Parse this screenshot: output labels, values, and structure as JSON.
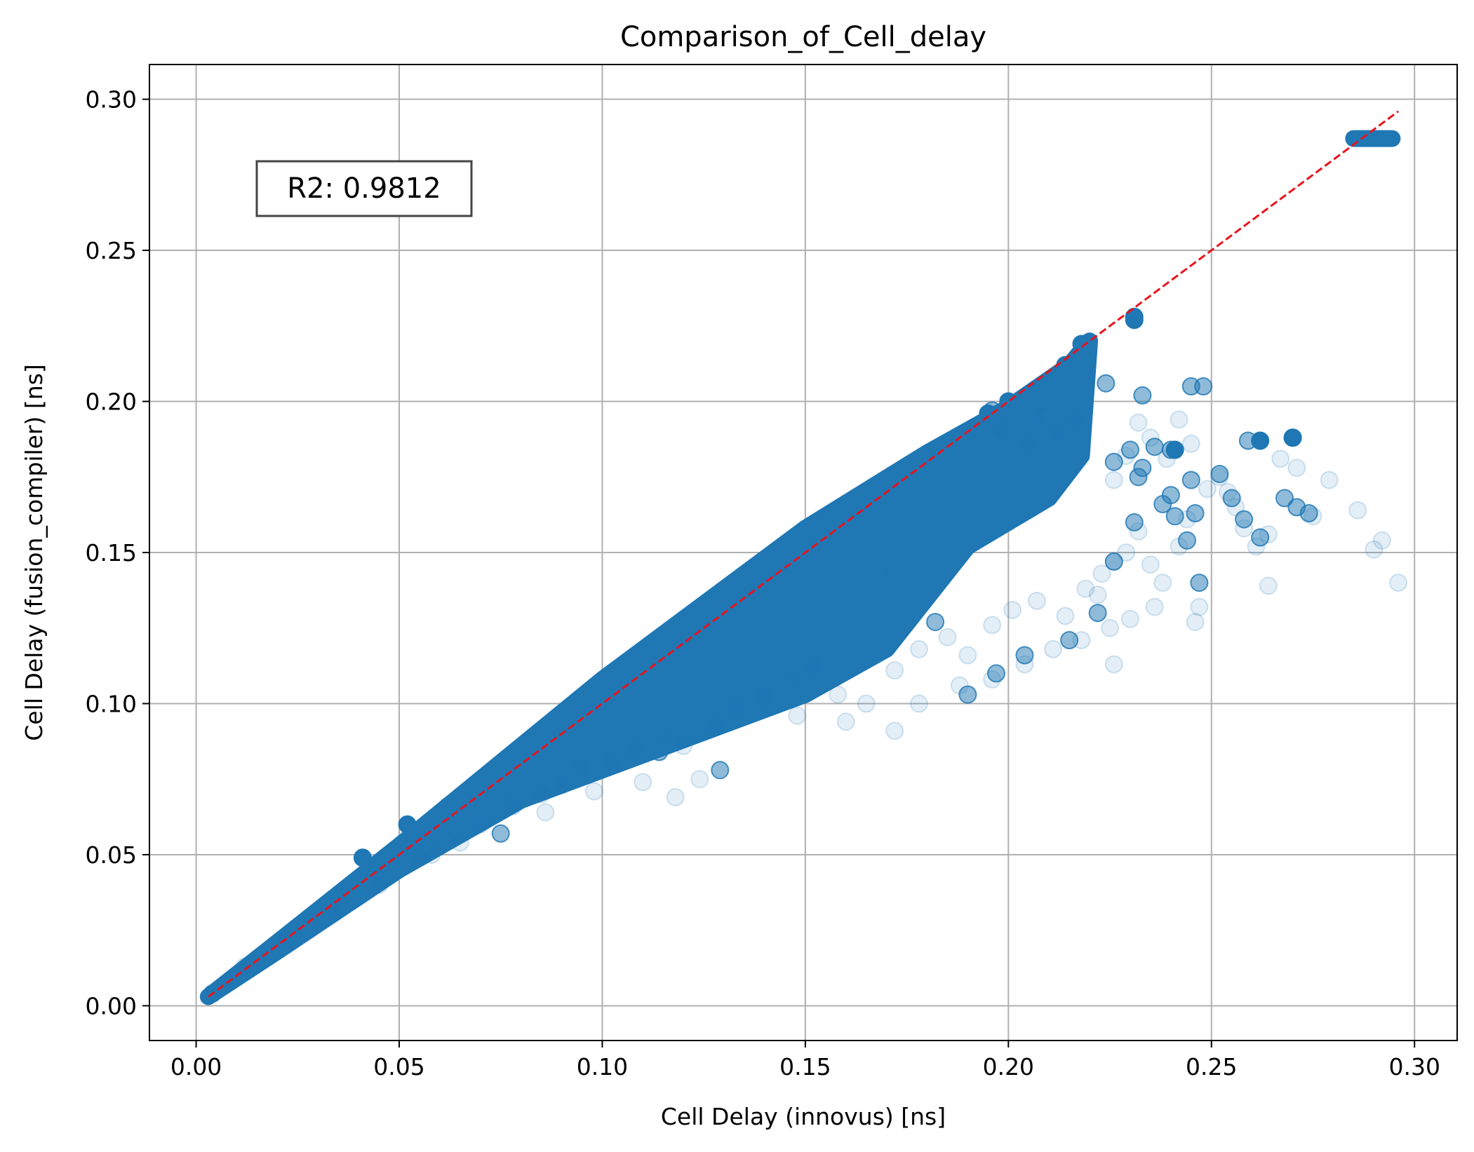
{
  "chart_data": {
    "type": "scatter",
    "title": "Comparison_of_Cell_delay",
    "xlabel": "Cell Delay (innovus) [ns]",
    "ylabel": "Cell Delay (fusion_compiler) [ns]",
    "xlim": [
      -0.0115,
      0.3105
    ],
    "ylim": [
      -0.0115,
      0.3115
    ],
    "xticks": [
      0.0,
      0.05,
      0.1,
      0.15,
      0.2,
      0.25,
      0.3
    ],
    "yticks": [
      0.0,
      0.05,
      0.1,
      0.15,
      0.2,
      0.25,
      0.3
    ],
    "xtick_labels": [
      "0.00",
      "0.05",
      "0.10",
      "0.15",
      "0.20",
      "0.25",
      "0.30"
    ],
    "ytick_labels": [
      "0.00",
      "0.05",
      "0.10",
      "0.15",
      "0.20",
      "0.25",
      "0.30"
    ],
    "grid": true,
    "colors": {
      "points": "#1f77b4",
      "reference_line": "#e8141c",
      "grid": "#b0b0b0"
    },
    "annotation": {
      "text": "R2: 0.9812",
      "position": "upper-left"
    },
    "reference_line": {
      "style": "dashed",
      "from": [
        0.003,
        0.003
      ],
      "to": [
        0.296,
        0.296
      ]
    },
    "series": [
      {
        "opacity": 0.12,
        "points": [
          [
            0.012,
            0.013
          ],
          [
            0.022,
            0.021
          ],
          [
            0.034,
            0.031
          ],
          [
            0.045,
            0.04
          ],
          [
            0.055,
            0.049
          ],
          [
            0.062,
            0.055
          ],
          [
            0.07,
            0.06
          ],
          [
            0.078,
            0.066
          ],
          [
            0.085,
            0.07
          ],
          [
            0.09,
            0.073
          ],
          [
            0.095,
            0.079
          ],
          [
            0.102,
            0.081
          ],
          [
            0.108,
            0.085
          ],
          [
            0.115,
            0.089
          ],
          [
            0.12,
            0.086
          ],
          [
            0.128,
            0.093
          ],
          [
            0.133,
            0.098
          ],
          [
            0.14,
            0.102
          ],
          [
            0.147,
            0.108
          ],
          [
            0.152,
            0.112
          ],
          [
            0.158,
            0.103
          ],
          [
            0.165,
            0.1
          ],
          [
            0.172,
            0.111
          ],
          [
            0.178,
            0.118
          ],
          [
            0.185,
            0.122
          ],
          [
            0.19,
            0.116
          ],
          [
            0.196,
            0.126
          ],
          [
            0.201,
            0.131
          ],
          [
            0.207,
            0.134
          ],
          [
            0.214,
            0.129
          ],
          [
            0.219,
            0.138
          ],
          [
            0.223,
            0.143
          ],
          [
            0.226,
            0.147
          ],
          [
            0.229,
            0.15
          ],
          [
            0.232,
            0.157
          ],
          [
            0.235,
            0.146
          ],
          [
            0.238,
            0.14
          ],
          [
            0.242,
            0.152
          ],
          [
            0.244,
            0.161
          ],
          [
            0.246,
            0.127
          ],
          [
            0.247,
            0.132
          ],
          [
            0.249,
            0.171
          ],
          [
            0.252,
            0.175
          ],
          [
            0.254,
            0.17
          ],
          [
            0.256,
            0.165
          ],
          [
            0.258,
            0.158
          ],
          [
            0.261,
            0.152
          ],
          [
            0.264,
            0.156
          ],
          [
            0.264,
            0.139
          ],
          [
            0.267,
            0.181
          ],
          [
            0.271,
            0.178
          ],
          [
            0.275,
            0.162
          ],
          [
            0.279,
            0.174
          ],
          [
            0.286,
            0.164
          ],
          [
            0.29,
            0.151
          ],
          [
            0.292,
            0.154
          ],
          [
            0.296,
            0.14
          ],
          [
            0.226,
            0.174
          ],
          [
            0.229,
            0.182
          ],
          [
            0.232,
            0.193
          ],
          [
            0.235,
            0.188
          ],
          [
            0.239,
            0.181
          ],
          [
            0.242,
            0.194
          ],
          [
            0.245,
            0.186
          ],
          [
            0.216,
            0.193
          ],
          [
            0.212,
            0.19
          ],
          [
            0.208,
            0.195
          ],
          [
            0.205,
            0.186
          ],
          [
            0.198,
            0.191
          ],
          [
            0.226,
            0.113
          ],
          [
            0.218,
            0.121
          ],
          [
            0.23,
            0.128
          ],
          [
            0.172,
            0.091
          ],
          [
            0.16,
            0.094
          ],
          [
            0.148,
            0.096
          ],
          [
            0.118,
            0.069
          ],
          [
            0.124,
            0.075
          ],
          [
            0.11,
            0.074
          ],
          [
            0.098,
            0.071
          ],
          [
            0.086,
            0.064
          ],
          [
            0.065,
            0.054
          ],
          [
            0.058,
            0.05
          ],
          [
            0.178,
            0.1
          ],
          [
            0.188,
            0.106
          ],
          [
            0.196,
            0.108
          ],
          [
            0.204,
            0.113
          ],
          [
            0.211,
            0.118
          ],
          [
            0.222,
            0.136
          ],
          [
            0.225,
            0.125
          ],
          [
            0.236,
            0.132
          ]
        ]
      },
      {
        "opacity": 0.5,
        "points": [
          [
            0.004,
            0.004
          ],
          [
            0.03,
            0.029
          ],
          [
            0.06,
            0.055
          ],
          [
            0.075,
            0.057
          ],
          [
            0.084,
            0.078
          ],
          [
            0.114,
            0.084
          ],
          [
            0.129,
            0.078
          ],
          [
            0.143,
            0.11
          ],
          [
            0.164,
            0.116
          ],
          [
            0.182,
            0.127
          ],
          [
            0.19,
            0.103
          ],
          [
            0.197,
            0.11
          ],
          [
            0.204,
            0.116
          ],
          [
            0.215,
            0.121
          ],
          [
            0.222,
            0.13
          ],
          [
            0.226,
            0.147
          ],
          [
            0.231,
            0.16
          ],
          [
            0.232,
            0.175
          ],
          [
            0.233,
            0.178
          ],
          [
            0.238,
            0.166
          ],
          [
            0.24,
            0.169
          ],
          [
            0.241,
            0.162
          ],
          [
            0.244,
            0.154
          ],
          [
            0.245,
            0.174
          ],
          [
            0.246,
            0.163
          ],
          [
            0.247,
            0.14
          ],
          [
            0.252,
            0.176
          ],
          [
            0.255,
            0.168
          ],
          [
            0.258,
            0.161
          ],
          [
            0.262,
            0.155
          ],
          [
            0.268,
            0.168
          ],
          [
            0.271,
            0.165
          ],
          [
            0.274,
            0.163
          ],
          [
            0.27,
            0.188
          ],
          [
            0.259,
            0.187
          ],
          [
            0.245,
            0.205
          ],
          [
            0.248,
            0.205
          ],
          [
            0.233,
            0.202
          ],
          [
            0.224,
            0.206
          ],
          [
            0.218,
            0.206
          ],
          [
            0.21,
            0.195
          ],
          [
            0.205,
            0.198
          ],
          [
            0.196,
            0.197
          ],
          [
            0.236,
            0.185
          ],
          [
            0.24,
            0.184
          ],
          [
            0.23,
            0.184
          ],
          [
            0.226,
            0.18
          ],
          [
            0.172,
            0.143
          ]
        ]
      },
      {
        "opacity": 1.0,
        "points": [
          [
            0.231,
            0.227
          ],
          [
            0.231,
            0.228
          ],
          [
            0.241,
            0.184
          ],
          [
            0.262,
            0.187
          ],
          [
            0.27,
            0.188
          ],
          [
            0.217,
            0.206
          ],
          [
            0.2,
            0.2
          ],
          [
            0.195,
            0.196
          ],
          [
            0.208,
            0.204
          ],
          [
            0.214,
            0.212
          ],
          [
            0.218,
            0.219
          ],
          [
            0.052,
            0.06
          ],
          [
            0.041,
            0.049
          ],
          [
            0.062,
            0.066
          ]
        ]
      }
    ],
    "dense_regions": [
      {
        "description_points_x": [
          0.003,
          0.02,
          0.05,
          0.1,
          0.15,
          0.18,
          0.2,
          0.215,
          0.22,
          0.218,
          0.21,
          0.19,
          0.17,
          0.15,
          0.12,
          0.1,
          0.08,
          0.05,
          0.02,
          0.003
        ],
        "description_points_y": [
          0.003,
          0.021,
          0.053,
          0.108,
          0.158,
          0.183,
          0.198,
          0.212,
          0.22,
          0.182,
          0.168,
          0.152,
          0.118,
          0.103,
          0.088,
          0.078,
          0.068,
          0.045,
          0.018,
          0.003
        ]
      },
      {
        "description_points_x": [
          0.285,
          0.2945
        ],
        "description_points_y": [
          0.287,
          0.287
        ]
      }
    ]
  }
}
